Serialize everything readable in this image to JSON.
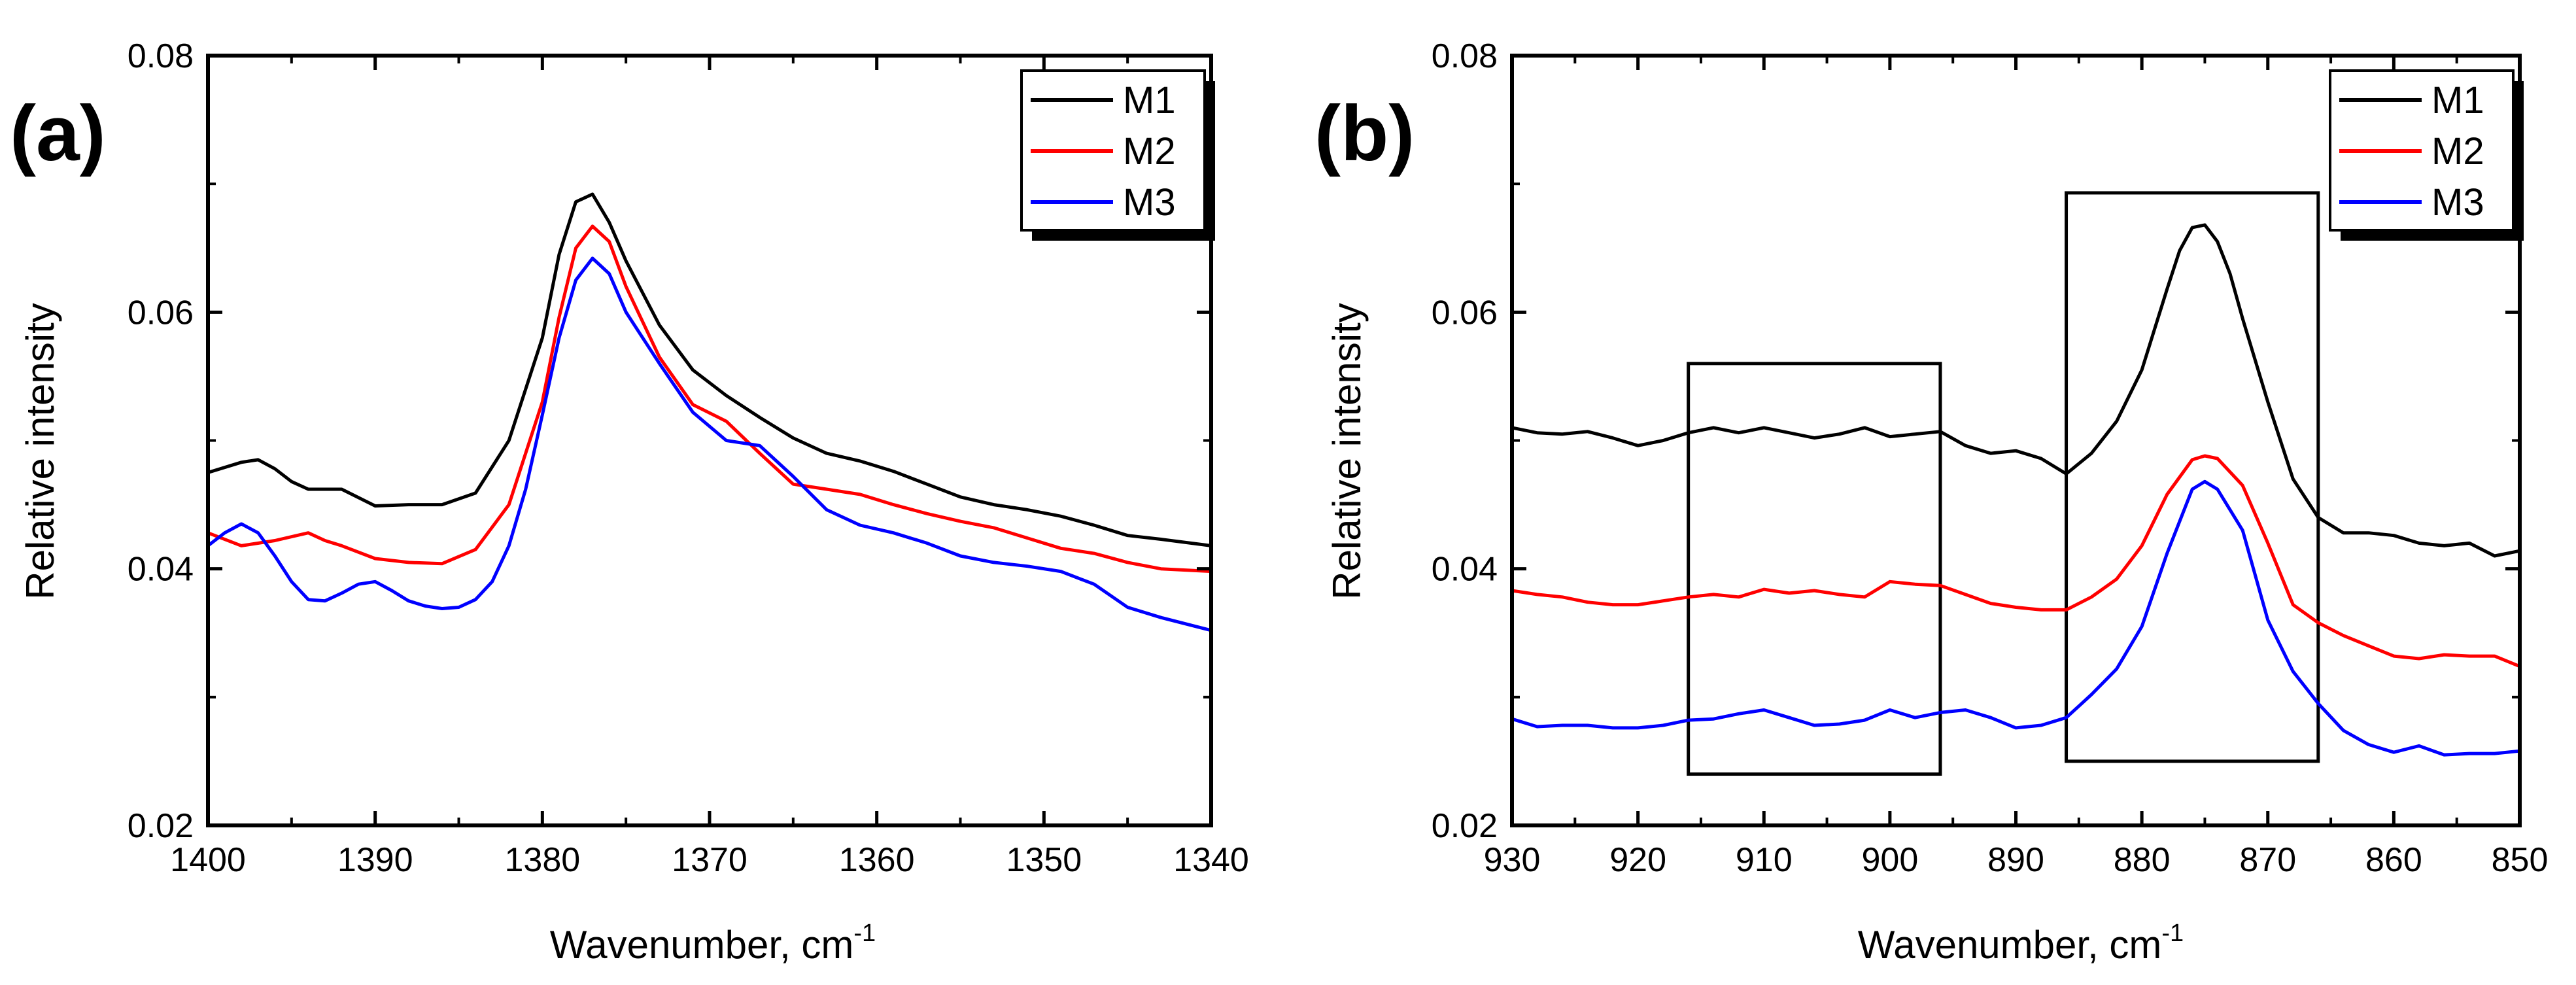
{
  "chart_data": [
    {
      "panel": "(a)",
      "type": "line",
      "xlabel": "Wavenumber, cm",
      "xlabel_sup": "-1",
      "ylabel": "Relative intensity",
      "xlim": [
        1400,
        1340
      ],
      "ylim": [
        0.02,
        0.08
      ],
      "xticks": [
        1400,
        1390,
        1380,
        1370,
        1360,
        1350,
        1340
      ],
      "yticks": [
        0.02,
        0.04,
        0.06,
        0.08
      ],
      "xtick_labels": [
        "1400",
        "1390",
        "1380",
        "1370",
        "1360",
        "1350",
        "1340"
      ],
      "ytick_labels": [
        "0.02",
        "0.04",
        "0.06",
        "0.08"
      ],
      "legend_position": "top-right",
      "series": [
        {
          "name": "M1",
          "color": "#000000",
          "x": [
            1400,
            1398,
            1397,
            1396,
            1395,
            1394,
            1392,
            1390,
            1388,
            1386,
            1384,
            1382,
            1380,
            1379,
            1378,
            1377,
            1376,
            1375,
            1373,
            1371,
            1369,
            1367,
            1365,
            1363,
            1361,
            1359,
            1357,
            1355,
            1353,
            1351,
            1349,
            1347,
            1345,
            1343,
            1340
          ],
          "y": [
            0.0475,
            0.0483,
            0.0485,
            0.0478,
            0.0468,
            0.0462,
            0.0462,
            0.0449,
            0.045,
            0.045,
            0.0459,
            0.05,
            0.058,
            0.0645,
            0.0686,
            0.0692,
            0.067,
            0.064,
            0.059,
            0.0555,
            0.0535,
            0.0518,
            0.0502,
            0.049,
            0.0484,
            0.0476,
            0.0466,
            0.0456,
            0.045,
            0.0446,
            0.0441,
            0.0434,
            0.0426,
            0.0423,
            0.0418
          ]
        },
        {
          "name": "M2",
          "color": "#ff0000",
          "x": [
            1400,
            1398,
            1396,
            1394,
            1393,
            1392,
            1390,
            1388,
            1386,
            1384,
            1382,
            1380,
            1379,
            1378,
            1377,
            1376,
            1375,
            1373,
            1371,
            1369,
            1367,
            1365,
            1363,
            1361,
            1359,
            1357,
            1355,
            1353,
            1351,
            1349,
            1347,
            1345,
            1343,
            1340
          ],
          "y": [
            0.0428,
            0.0418,
            0.0422,
            0.0428,
            0.0422,
            0.0418,
            0.0408,
            0.0405,
            0.0404,
            0.0415,
            0.045,
            0.053,
            0.0596,
            0.065,
            0.0667,
            0.0655,
            0.062,
            0.0565,
            0.0528,
            0.0515,
            0.049,
            0.0466,
            0.0462,
            0.0458,
            0.045,
            0.0443,
            0.0437,
            0.0432,
            0.0424,
            0.0416,
            0.0412,
            0.0405,
            0.04,
            0.0398
          ]
        },
        {
          "name": "M3",
          "color": "#0000ff",
          "x": [
            1400,
            1399,
            1398,
            1397,
            1396,
            1395,
            1394,
            1393,
            1392,
            1391,
            1390,
            1389,
            1388,
            1387,
            1386,
            1385,
            1384,
            1383,
            1382,
            1381,
            1380,
            1379,
            1378,
            1377,
            1376,
            1375,
            1373,
            1371,
            1369,
            1367,
            1365,
            1363,
            1361,
            1359,
            1357,
            1355,
            1353,
            1351,
            1349,
            1347,
            1345,
            1343,
            1340
          ],
          "y": [
            0.0418,
            0.0428,
            0.0435,
            0.0428,
            0.041,
            0.039,
            0.0376,
            0.0375,
            0.0381,
            0.0388,
            0.039,
            0.0383,
            0.0375,
            0.0371,
            0.0369,
            0.037,
            0.0376,
            0.039,
            0.0418,
            0.0462,
            0.052,
            0.058,
            0.0625,
            0.0642,
            0.063,
            0.06,
            0.056,
            0.0522,
            0.05,
            0.0496,
            0.0472,
            0.0446,
            0.0434,
            0.0428,
            0.042,
            0.041,
            0.0405,
            0.0402,
            0.0398,
            0.0388,
            0.037,
            0.0362,
            0.0352
          ]
        }
      ]
    },
    {
      "panel": "(b)",
      "type": "line",
      "xlabel": "Wavenumber, cm",
      "xlabel_sup": "-1",
      "ylabel": "Relative intensity",
      "xlim": [
        930,
        850
      ],
      "ylim": [
        0.02,
        0.08
      ],
      "xticks": [
        930,
        920,
        910,
        900,
        890,
        880,
        870,
        860,
        850
      ],
      "yticks": [
        0.02,
        0.04,
        0.06,
        0.08
      ],
      "xtick_labels": [
        "930",
        "920",
        "910",
        "900",
        "890",
        "880",
        "870",
        "860",
        "850"
      ],
      "ytick_labels": [
        "0.02",
        "0.04",
        "0.06",
        "0.08"
      ],
      "legend_position": "top-right",
      "annotations": [
        {
          "type": "box",
          "x_range": [
            916,
            896
          ],
          "y_range": [
            0.024,
            0.056
          ]
        },
        {
          "type": "box",
          "x_range": [
            886,
            866
          ],
          "y_range": [
            0.025,
            0.0693
          ]
        }
      ],
      "series": [
        {
          "name": "M1",
          "color": "#000000",
          "x": [
            930,
            928,
            926,
            924,
            922,
            920,
            918,
            916,
            914,
            912,
            910,
            908,
            906,
            904,
            902,
            900,
            898,
            896,
            894,
            892,
            890,
            888,
            886,
            884,
            882,
            880,
            878,
            877,
            876,
            875,
            874,
            873,
            872,
            870,
            868,
            866,
            864,
            862,
            860,
            858,
            856,
            854,
            852,
            850
          ],
          "y": [
            0.051,
            0.0506,
            0.0505,
            0.0507,
            0.0502,
            0.0496,
            0.05,
            0.0506,
            0.051,
            0.0506,
            0.051,
            0.0506,
            0.0502,
            0.0505,
            0.051,
            0.0503,
            0.0505,
            0.0507,
            0.0496,
            0.049,
            0.0492,
            0.0486,
            0.0474,
            0.049,
            0.0515,
            0.0555,
            0.0618,
            0.0648,
            0.0666,
            0.0668,
            0.0655,
            0.063,
            0.0595,
            0.053,
            0.047,
            0.044,
            0.0428,
            0.0428,
            0.0426,
            0.042,
            0.0418,
            0.042,
            0.041,
            0.0414
          ]
        },
        {
          "name": "M2",
          "color": "#ff0000",
          "x": [
            930,
            928,
            926,
            924,
            922,
            920,
            918,
            916,
            914,
            912,
            910,
            908,
            906,
            904,
            902,
            900,
            898,
            896,
            894,
            892,
            890,
            888,
            886,
            884,
            882,
            880,
            878,
            876,
            875,
            874,
            872,
            870,
            868,
            866,
            864,
            862,
            860,
            858,
            856,
            854,
            852,
            850
          ],
          "y": [
            0.0383,
            0.038,
            0.0378,
            0.0374,
            0.0372,
            0.0372,
            0.0375,
            0.0378,
            0.038,
            0.0378,
            0.0384,
            0.0381,
            0.0383,
            0.038,
            0.0378,
            0.039,
            0.0388,
            0.0387,
            0.038,
            0.0373,
            0.037,
            0.0368,
            0.0368,
            0.0378,
            0.0392,
            0.0418,
            0.0458,
            0.0485,
            0.0488,
            0.0486,
            0.0465,
            0.042,
            0.0372,
            0.0358,
            0.0348,
            0.034,
            0.0332,
            0.033,
            0.0333,
            0.0332,
            0.0332,
            0.0324
          ]
        },
        {
          "name": "M3",
          "color": "#0000ff",
          "x": [
            930,
            928,
            926,
            924,
            922,
            920,
            918,
            916,
            914,
            912,
            910,
            908,
            906,
            904,
            902,
            900,
            898,
            896,
            894,
            892,
            890,
            888,
            886,
            884,
            882,
            880,
            878,
            876,
            875,
            874,
            872,
            870,
            868,
            866,
            864,
            862,
            860,
            858,
            856,
            854,
            852,
            850
          ],
          "y": [
            0.0283,
            0.0277,
            0.0278,
            0.0278,
            0.0276,
            0.0276,
            0.0278,
            0.0282,
            0.0283,
            0.0287,
            0.029,
            0.0284,
            0.0278,
            0.0279,
            0.0282,
            0.029,
            0.0284,
            0.0288,
            0.029,
            0.0284,
            0.0276,
            0.0278,
            0.0284,
            0.0302,
            0.0322,
            0.0355,
            0.0412,
            0.0462,
            0.0468,
            0.0462,
            0.043,
            0.036,
            0.032,
            0.0295,
            0.0274,
            0.0263,
            0.0257,
            0.0262,
            0.0255,
            0.0256,
            0.0256,
            0.0258
          ]
        }
      ]
    }
  ]
}
